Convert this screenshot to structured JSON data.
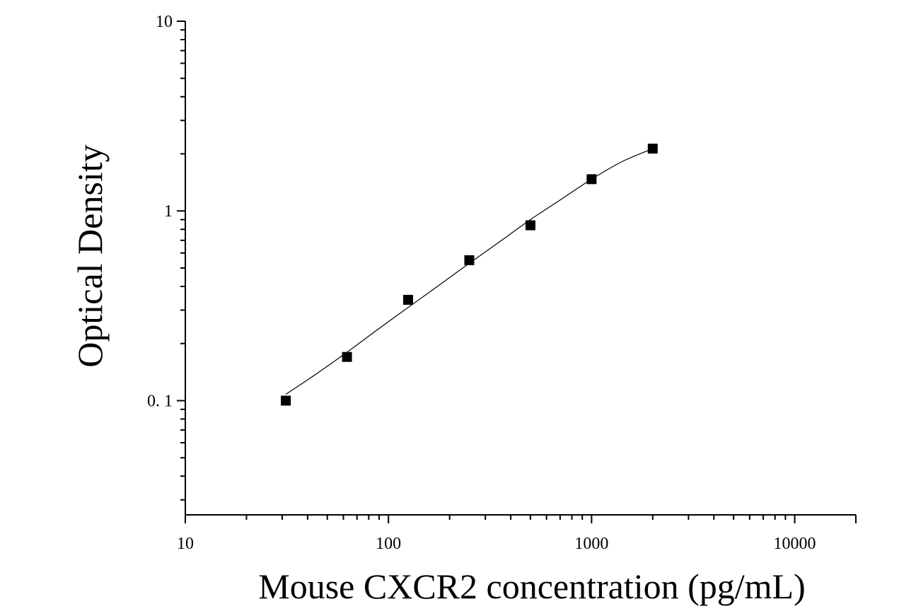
{
  "chart_data": {
    "type": "scatter",
    "title": "",
    "xlabel": "Mouse CXCR2 concentration (pg/mL)",
    "ylabel": "Optical Density",
    "x_scale": "log",
    "y_scale": "log",
    "xlim": [
      10,
      20000
    ],
    "ylim": [
      0.025,
      10
    ],
    "x_ticks": [
      {
        "value": 10,
        "label": "10"
      },
      {
        "value": 100,
        "label": "100"
      },
      {
        "value": 1000,
        "label": "1000"
      },
      {
        "value": 10000,
        "label": "10000"
      }
    ],
    "y_ticks": [
      {
        "value": 0.1,
        "label": "0. 1"
      },
      {
        "value": 1,
        "label": "1"
      },
      {
        "value": 10,
        "label": "10"
      }
    ],
    "grid": false,
    "legend": "none",
    "series": [
      {
        "marker": "square",
        "color": "#000000",
        "points": [
          {
            "x": 31.25,
            "y": 0.1
          },
          {
            "x": 62.5,
            "y": 0.17
          },
          {
            "x": 125,
            "y": 0.34
          },
          {
            "x": 250,
            "y": 0.55
          },
          {
            "x": 500,
            "y": 0.84
          },
          {
            "x": 1000,
            "y": 1.47
          },
          {
            "x": 2000,
            "y": 2.13
          }
        ]
      }
    ],
    "fit_curve": {
      "color": "#000000",
      "points": [
        {
          "x": 31.25,
          "y": 0.108
        },
        {
          "x": 44,
          "y": 0.138
        },
        {
          "x": 62.5,
          "y": 0.18
        },
        {
          "x": 88,
          "y": 0.236
        },
        {
          "x": 125,
          "y": 0.31
        },
        {
          "x": 177,
          "y": 0.405
        },
        {
          "x": 250,
          "y": 0.53
        },
        {
          "x": 354,
          "y": 0.69
        },
        {
          "x": 500,
          "y": 0.9
        },
        {
          "x": 707,
          "y": 1.15
        },
        {
          "x": 1000,
          "y": 1.47
        },
        {
          "x": 1414,
          "y": 1.82
        },
        {
          "x": 2000,
          "y": 2.13
        }
      ]
    }
  }
}
